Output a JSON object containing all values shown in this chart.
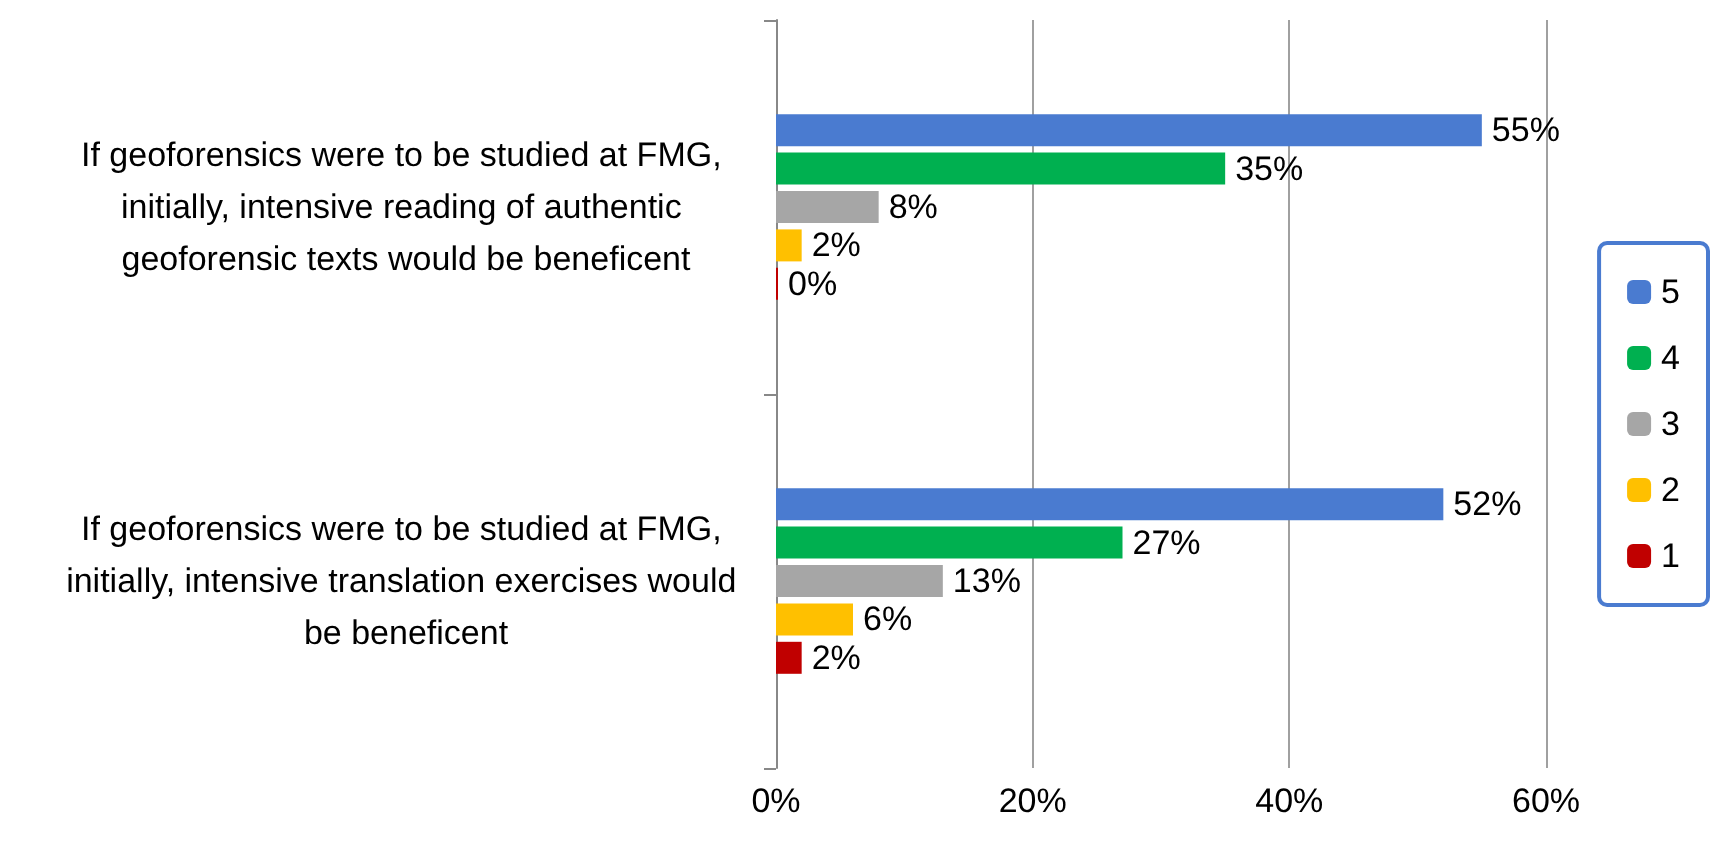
{
  "chart_data": {
    "type": "bar",
    "orientation": "horizontal",
    "categories": [
      "If geoforensics were to be studied at FMG, initially, intensive reading of authentic geoforensic texts would be beneficent",
      "If geoforensics were to be studied at FMG, initially, intensive translation exercises would be beneficent"
    ],
    "series": [
      {
        "name": "5",
        "color": "#4a7bd0",
        "values": [
          55,
          52
        ],
        "value_labels": [
          "55%",
          "52%"
        ]
      },
      {
        "name": "4",
        "color": "#00b050",
        "values": [
          35,
          27
        ],
        "value_labels": [
          "35%",
          "27%"
        ]
      },
      {
        "name": "3",
        "color": "#a6a6a6",
        "values": [
          8,
          13
        ],
        "value_labels": [
          "8%",
          "13%"
        ]
      },
      {
        "name": "2",
        "color": "#ffc000",
        "values": [
          2,
          6
        ],
        "value_labels": [
          "2%",
          "6%"
        ]
      },
      {
        "name": "1",
        "color": "#c00000",
        "values": [
          0,
          2
        ],
        "value_labels": [
          "0%",
          "2%"
        ]
      }
    ],
    "xlim": [
      0,
      60
    ],
    "xticks": [
      {
        "value": 0,
        "label": "0%"
      },
      {
        "value": 20,
        "label": "20%"
      },
      {
        "value": 40,
        "label": "40%"
      },
      {
        "value": 60,
        "label": "60%"
      }
    ],
    "grid": "x",
    "legend": "right"
  }
}
